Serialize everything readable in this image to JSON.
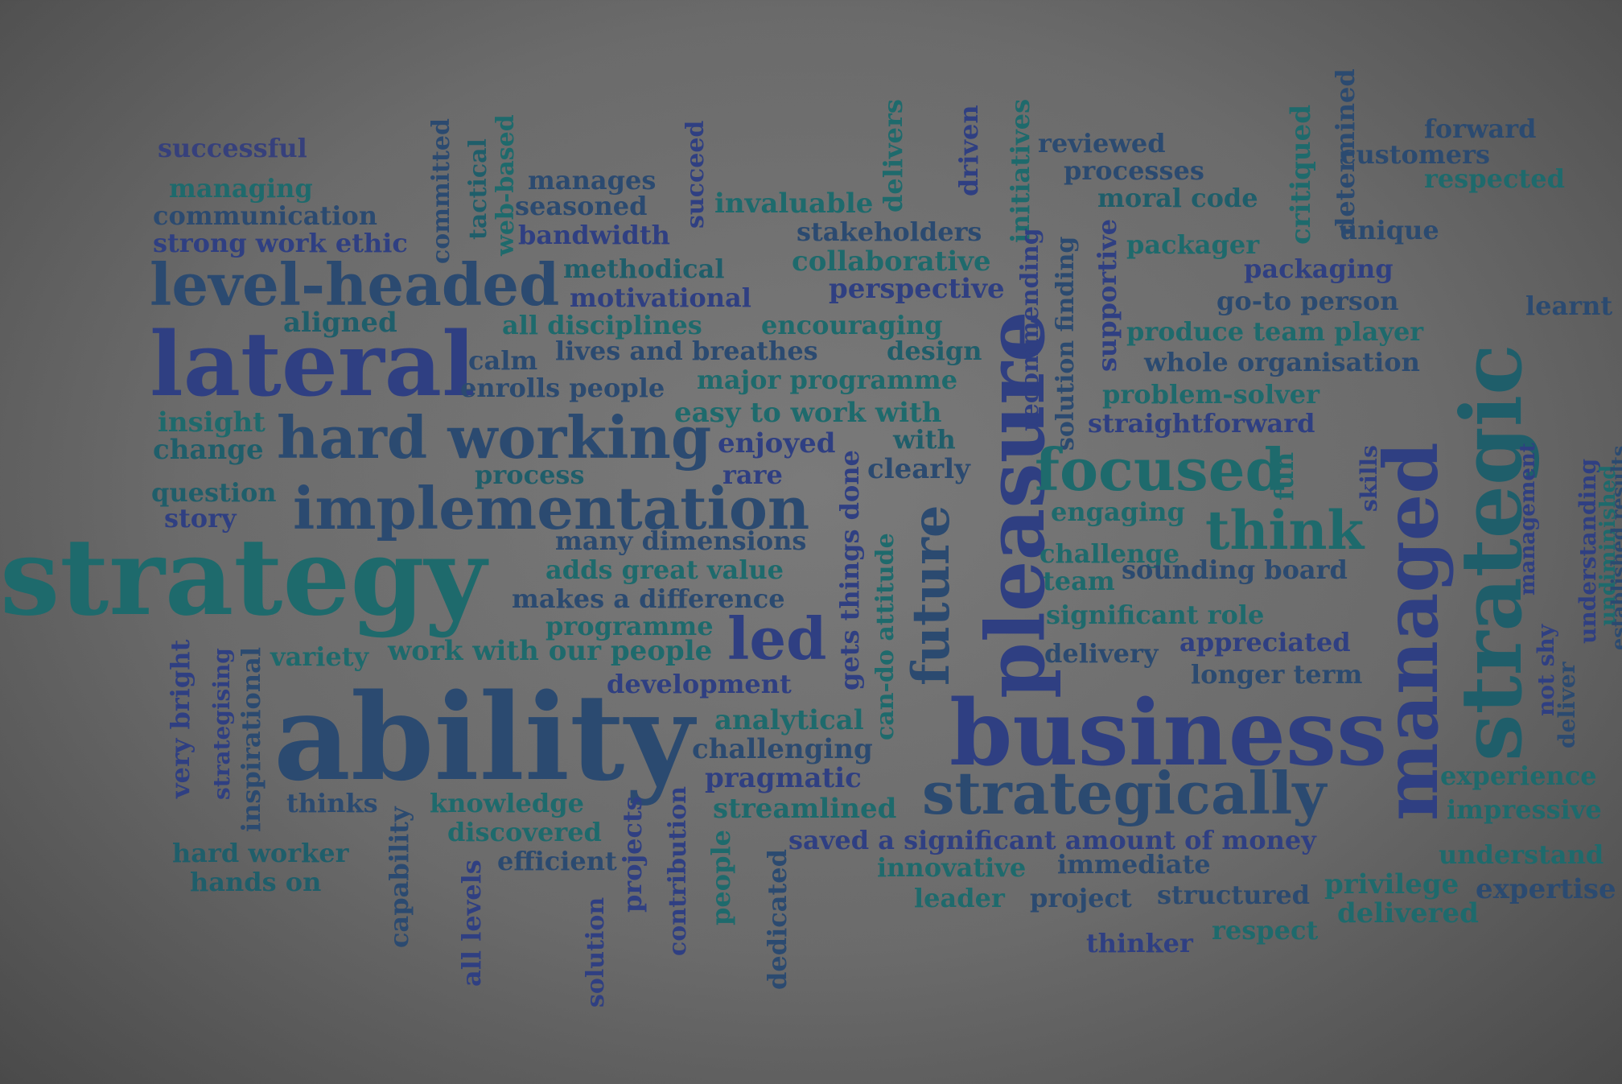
{
  "colors": {
    "background": "#6b6b6b",
    "c1": "#2b4a70",
    "c2": "#1f5e6a",
    "c3": "#2f3f82",
    "c4": "#1e6a6c",
    "c5": "#36407c"
  },
  "words": [
    {
      "text": "successful",
      "color": "#36407c"
    },
    {
      "text": "managing",
      "color": "#1e6a6c"
    },
    {
      "text": "communication",
      "color": "#2b4a70"
    },
    {
      "text": "strong work ethic",
      "color": "#2f3f82"
    },
    {
      "text": "level-headed",
      "color": "#2b4a70"
    },
    {
      "text": "aligned",
      "color": "#1f5e6a"
    },
    {
      "text": "lateral",
      "color": "#2f3f82"
    },
    {
      "text": "insight",
      "color": "#1e6a6c"
    },
    {
      "text": "change",
      "color": "#1f5e6a"
    },
    {
      "text": "hard working",
      "color": "#2b4a70"
    },
    {
      "text": "question",
      "color": "#1f5e6a"
    },
    {
      "text": "story",
      "color": "#2f3f82"
    },
    {
      "text": "implementation",
      "color": "#2b4a70"
    },
    {
      "text": "strategy",
      "color": "#1e6a6c"
    },
    {
      "text": "committed",
      "color": "#2b4a70"
    },
    {
      "text": "tactical",
      "color": "#1f5e6a"
    },
    {
      "text": "web-based",
      "color": "#1e6a6c"
    },
    {
      "text": "manages",
      "color": "#2b4a70"
    },
    {
      "text": "seasoned",
      "color": "#2b4a70"
    },
    {
      "text": "bandwidth",
      "color": "#2f3f82"
    },
    {
      "text": "succeed",
      "color": "#2f3f82"
    },
    {
      "text": "invaluable",
      "color": "#1e6a6c"
    },
    {
      "text": "delivers",
      "color": "#1e6a6c"
    },
    {
      "text": "driven",
      "color": "#2f3f82"
    },
    {
      "text": "initiatives",
      "color": "#1e6a6c"
    },
    {
      "text": "reviewed",
      "color": "#2b4a70"
    },
    {
      "text": "processes",
      "color": "#2b4a70"
    },
    {
      "text": "moral code",
      "color": "#1f5e6a"
    },
    {
      "text": "stakeholders",
      "color": "#2b4a70"
    },
    {
      "text": "methodical",
      "color": "#1f5e6a"
    },
    {
      "text": "motivational",
      "color": "#2f3f82"
    },
    {
      "text": "collaborative",
      "color": "#1e6a6c"
    },
    {
      "text": "perspective",
      "color": "#2f3f82"
    },
    {
      "text": "all disciplines",
      "color": "#1e6a6c"
    },
    {
      "text": "encouraging",
      "color": "#1e6a6c"
    },
    {
      "text": "calm",
      "color": "#2b4a70"
    },
    {
      "text": "lives and breathes",
      "color": "#2b4a70"
    },
    {
      "text": "design",
      "color": "#1f5e6a"
    },
    {
      "text": "enrolls people",
      "color": "#2b4a70"
    },
    {
      "text": "major programme",
      "color": "#1e6a6c"
    },
    {
      "text": "easy to work with",
      "color": "#1e6a6c"
    },
    {
      "text": "enjoyed",
      "color": "#2f3f82"
    },
    {
      "text": "with",
      "color": "#1f5e6a"
    },
    {
      "text": "process",
      "color": "#1f5e6a"
    },
    {
      "text": "rare",
      "color": "#2f3f82"
    },
    {
      "text": "clearly",
      "color": "#2b4a70"
    },
    {
      "text": "many dimensions",
      "color": "#2b4a70"
    },
    {
      "text": "adds great value",
      "color": "#1e6a6c"
    },
    {
      "text": "makes a difference",
      "color": "#2b4a70"
    },
    {
      "text": "programme",
      "color": "#1e6a6c"
    },
    {
      "text": "led",
      "color": "#2f3f82"
    },
    {
      "text": "variety",
      "color": "#1e6a6c"
    },
    {
      "text": "work with our people",
      "color": "#1e6a6c"
    },
    {
      "text": "development",
      "color": "#2f3f82"
    },
    {
      "text": "ability",
      "color": "#2b4a70"
    },
    {
      "text": "analytical",
      "color": "#1e6a6c"
    },
    {
      "text": "challenging",
      "color": "#2b4a70"
    },
    {
      "text": "pragmatic",
      "color": "#2f3f82"
    },
    {
      "text": "streamlined",
      "color": "#1e6a6c"
    },
    {
      "text": "thinks",
      "color": "#2b4a70"
    },
    {
      "text": "knowledge",
      "color": "#1e6a6c"
    },
    {
      "text": "discovered",
      "color": "#1e6a6c"
    },
    {
      "text": "efficient",
      "color": "#2b4a70"
    },
    {
      "text": "hard worker",
      "color": "#1f5e6a"
    },
    {
      "text": "hands on",
      "color": "#1f5e6a"
    },
    {
      "text": "very bright",
      "color": "#2f3f82"
    },
    {
      "text": "strategising",
      "color": "#2f3f82"
    },
    {
      "text": "inspirational",
      "color": "#2b4a70"
    },
    {
      "text": "capability",
      "color": "#2b4a70"
    },
    {
      "text": "all levels",
      "color": "#2f3f82"
    },
    {
      "text": "solution",
      "color": "#2f3f82"
    },
    {
      "text": "projects",
      "color": "#2f3f82"
    },
    {
      "text": "contribution",
      "color": "#2f3f82"
    },
    {
      "text": "people",
      "color": "#1e6a6c"
    },
    {
      "text": "dedicated",
      "color": "#2b4a70"
    },
    {
      "text": "gets things done",
      "color": "#2f3f82"
    },
    {
      "text": "can-do attitude",
      "color": "#1e6a6c"
    },
    {
      "text": "future",
      "color": "#2b4a70"
    },
    {
      "text": "pleasure",
      "color": "#2f3f82"
    },
    {
      "text": "recommending",
      "color": "#2f3f82"
    },
    {
      "text": "solution finding",
      "color": "#2b4a70"
    },
    {
      "text": "supportive",
      "color": "#2f3f82"
    },
    {
      "text": "critiqued",
      "color": "#1e6a6c"
    },
    {
      "text": "determined",
      "color": "#2b4a70"
    },
    {
      "text": "packager",
      "color": "#1e6a6c"
    },
    {
      "text": "unique",
      "color": "#2b4a70"
    },
    {
      "text": "forward",
      "color": "#2b4a70"
    },
    {
      "text": "customers",
      "color": "#2b4a70"
    },
    {
      "text": "respected",
      "color": "#1e6a6c"
    },
    {
      "text": "packaging",
      "color": "#2f3f82"
    },
    {
      "text": "go-to person",
      "color": "#2b4a70"
    },
    {
      "text": "learnt",
      "color": "#2b4a70"
    },
    {
      "text": "produce team player",
      "color": "#1e6a6c"
    },
    {
      "text": "whole organisation",
      "color": "#2b4a70"
    },
    {
      "text": "problem-solver",
      "color": "#1e6a6c"
    },
    {
      "text": "straightforward",
      "color": "#2f3f82"
    },
    {
      "text": "focused",
      "color": "#1e6a6c"
    },
    {
      "text": "fun",
      "color": "#1e6a6c"
    },
    {
      "text": "skills",
      "color": "#2f3f82"
    },
    {
      "text": "engaging",
      "color": "#1e6a6c"
    },
    {
      "text": "think",
      "color": "#1e6a6c"
    },
    {
      "text": "challenge",
      "color": "#1e6a6c"
    },
    {
      "text": "team",
      "color": "#1e6a6c"
    },
    {
      "text": "sounding board",
      "color": "#2b4a70"
    },
    {
      "text": "significant role",
      "color": "#1e6a6c"
    },
    {
      "text": "delivery",
      "color": "#2b4a70"
    },
    {
      "text": "appreciated",
      "color": "#2f3f82"
    },
    {
      "text": "longer term",
      "color": "#2b4a70"
    },
    {
      "text": "managed",
      "color": "#2f3f82"
    },
    {
      "text": "strategic",
      "color": "#1f5e6a"
    },
    {
      "text": "business",
      "color": "#2f3f82"
    },
    {
      "text": "strategically",
      "color": "#2b4a70"
    },
    {
      "text": "saved a significant amount of money",
      "color": "#2f3f82"
    },
    {
      "text": "innovative",
      "color": "#1e6a6c"
    },
    {
      "text": "immediate",
      "color": "#2b4a70"
    },
    {
      "text": "leader",
      "color": "#1e6a6c"
    },
    {
      "text": "project",
      "color": "#2b4a70"
    },
    {
      "text": "structured",
      "color": "#2b4a70"
    },
    {
      "text": "privilege",
      "color": "#1e6a6c"
    },
    {
      "text": "expertise",
      "color": "#2b4a70"
    },
    {
      "text": "delivered",
      "color": "#1e6a6c"
    },
    {
      "text": "respect",
      "color": "#1e6a6c"
    },
    {
      "text": "thinker",
      "color": "#2f3f82"
    },
    {
      "text": "experience",
      "color": "#1e6a6c"
    },
    {
      "text": "impressive",
      "color": "#1e6a6c"
    },
    {
      "text": "understand",
      "color": "#1e6a6c"
    },
    {
      "text": "management",
      "color": "#2f3f82"
    },
    {
      "text": "not shy",
      "color": "#2f3f82"
    },
    {
      "text": "deliver",
      "color": "#2b4a70"
    },
    {
      "text": "understanding",
      "color": "#2f3f82"
    },
    {
      "text": "undiminished",
      "color": "#1e6a6c"
    },
    {
      "text": "established results",
      "color": "#2b4a70"
    }
  ]
}
